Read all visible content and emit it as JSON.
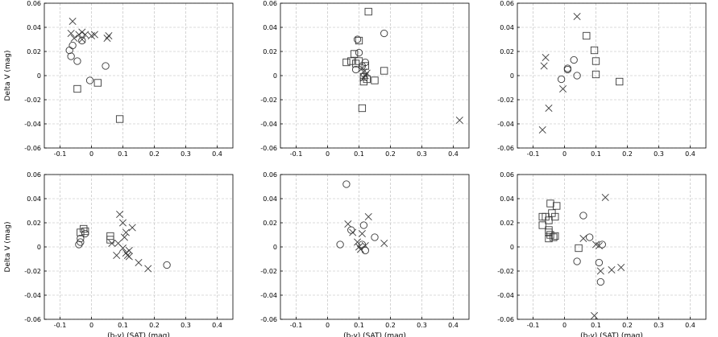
{
  "chart_data": [
    {
      "type": "scatter",
      "ylabel": "Delta  V (mag)",
      "xlabel": "",
      "xlim": [
        -0.15,
        0.45
      ],
      "ylim": [
        -0.06,
        0.06
      ],
      "xticks": [
        "-0.1",
        "0",
        "0.1",
        "0.2",
        "0.3",
        "0.4"
      ],
      "yticks": [
        "0.06",
        "0.04",
        "0.02",
        "0",
        "-0.02",
        "-0.04",
        "-0.06"
      ],
      "grid": true,
      "series": [
        {
          "marker": "circle",
          "points": [
            [
              -0.07,
              0.021
            ],
            [
              -0.065,
              0.016
            ],
            [
              -0.06,
              0.025
            ],
            [
              -0.045,
              0.012
            ],
            [
              -0.03,
              0.029
            ],
            [
              0.045,
              0.008
            ],
            [
              -0.005,
              -0.004
            ]
          ]
        },
        {
          "marker": "cross",
          "points": [
            [
              -0.06,
              0.045
            ],
            [
              -0.065,
              0.035
            ],
            [
              -0.055,
              0.031
            ],
            [
              -0.04,
              0.034
            ],
            [
              -0.03,
              0.036
            ],
            [
              -0.02,
              0.034
            ],
            [
              0.0,
              0.033
            ],
            [
              0.01,
              0.034
            ],
            [
              0.05,
              0.031
            ],
            [
              0.055,
              0.033
            ],
            [
              -0.03,
              0.03
            ]
          ]
        },
        {
          "marker": "square",
          "points": [
            [
              -0.045,
              -0.011
            ],
            [
              0.02,
              -0.006
            ],
            [
              0.09,
              -0.036
            ]
          ]
        }
      ]
    },
    {
      "type": "scatter",
      "ylabel": "",
      "xlabel": "",
      "xlim": [
        -0.15,
        0.45
      ],
      "ylim": [
        -0.06,
        0.06
      ],
      "xticks": [
        "-0.1",
        "0",
        "0.1",
        "0.2",
        "0.3",
        "0.4"
      ],
      "yticks": [
        "0.06",
        "0.04",
        "0.02",
        "0",
        "-0.02",
        "-0.04",
        "-0.06"
      ],
      "grid": true,
      "series": [
        {
          "marker": "circle",
          "points": [
            [
              0.1,
              0.019
            ],
            [
              0.095,
              0.03
            ],
            [
              0.12,
              0.011
            ],
            [
              0.18,
              0.035
            ],
            [
              0.11,
              0.008
            ],
            [
              0.09,
              0.005
            ]
          ]
        },
        {
          "marker": "cross",
          "points": [
            [
              0.11,
              0.006
            ],
            [
              0.115,
              0.003
            ],
            [
              0.12,
              0.0
            ],
            [
              0.125,
              0.002
            ],
            [
              0.115,
              -0.002
            ],
            [
              0.42,
              -0.037
            ]
          ]
        },
        {
          "marker": "square",
          "points": [
            [
              0.13,
              0.053
            ],
            [
              0.1,
              0.029
            ],
            [
              0.06,
              0.011
            ],
            [
              0.075,
              0.012
            ],
            [
              0.085,
              0.018
            ],
            [
              0.09,
              0.01
            ],
            [
              0.1,
              0.012
            ],
            [
              0.12,
              0.008
            ],
            [
              0.115,
              -0.001
            ],
            [
              0.115,
              -0.005
            ],
            [
              0.15,
              -0.004
            ],
            [
              0.11,
              -0.027
            ],
            [
              0.18,
              0.004
            ],
            [
              0.125,
              -0.003
            ]
          ]
        }
      ]
    },
    {
      "type": "scatter",
      "ylabel": "",
      "xlabel": "",
      "xlim": [
        -0.15,
        0.45
      ],
      "ylim": [
        -0.06,
        0.06
      ],
      "xticks": [
        "-0.1",
        "0",
        "0.1",
        "0.2",
        "0.3",
        "0.4"
      ],
      "yticks": [
        "0.06",
        "0.04",
        "0.02",
        "0",
        "-0.02",
        "-0.04",
        "-0.06"
      ],
      "grid": true,
      "series": [
        {
          "marker": "circle",
          "points": [
            [
              0.03,
              0.013
            ],
            [
              0.01,
              0.005
            ],
            [
              0.01,
              0.006
            ],
            [
              -0.01,
              -0.003
            ],
            [
              0.04,
              0.0
            ]
          ]
        },
        {
          "marker": "cross",
          "points": [
            [
              -0.06,
              0.015
            ],
            [
              -0.065,
              0.008
            ],
            [
              -0.05,
              -0.027
            ],
            [
              -0.07,
              -0.045
            ],
            [
              0.04,
              0.049
            ],
            [
              -0.005,
              -0.011
            ]
          ]
        },
        {
          "marker": "square",
          "points": [
            [
              0.07,
              0.033
            ],
            [
              0.095,
              0.021
            ],
            [
              0.1,
              0.012
            ],
            [
              0.1,
              0.001
            ],
            [
              0.175,
              -0.005
            ]
          ]
        }
      ]
    },
    {
      "type": "scatter",
      "ylabel": "Delta  V (mag)",
      "xlabel": "(b-y) (SAT) (mag)",
      "xlim": [
        -0.15,
        0.45
      ],
      "ylim": [
        -0.06,
        0.06
      ],
      "xticks": [
        "-0.1",
        "0",
        "0.1",
        "0.2",
        "0.3",
        "0.4"
      ],
      "yticks": [
        "0.06",
        "0.04",
        "0.02",
        "0",
        "-0.02",
        "-0.04",
        "-0.06"
      ],
      "grid": true,
      "series": [
        {
          "marker": "circle",
          "points": [
            [
              -0.04,
              0.002
            ],
            [
              -0.035,
              0.004
            ],
            [
              -0.035,
              0.007
            ],
            [
              -0.02,
              0.011
            ],
            [
              0.24,
              -0.015
            ]
          ]
        },
        {
          "marker": "cross",
          "points": [
            [
              0.09,
              0.027
            ],
            [
              0.1,
              0.02
            ],
            [
              0.11,
              0.012
            ],
            [
              0.13,
              0.016
            ],
            [
              0.065,
              0.003
            ],
            [
              0.085,
              0.003
            ],
            [
              0.1,
              -0.001
            ],
            [
              0.11,
              -0.005
            ],
            [
              0.115,
              -0.007
            ],
            [
              0.12,
              -0.003
            ],
            [
              0.08,
              -0.007
            ],
            [
              0.15,
              -0.013
            ],
            [
              0.18,
              -0.018
            ],
            [
              0.105,
              0.008
            ],
            [
              0.12,
              -0.008
            ]
          ]
        },
        {
          "marker": "square",
          "points": [
            [
              -0.035,
              0.012
            ],
            [
              -0.025,
              0.015
            ],
            [
              -0.02,
              0.013
            ],
            [
              0.06,
              0.009
            ],
            [
              0.06,
              0.006
            ]
          ]
        }
      ]
    },
    {
      "type": "scatter",
      "ylabel": "",
      "xlabel": "(b-y) (SAT) (mag)",
      "xlim": [
        -0.15,
        0.45
      ],
      "ylim": [
        -0.06,
        0.06
      ],
      "xticks": [
        "-0.1",
        "0",
        "0.1",
        "0.2",
        "0.3",
        "0.4"
      ],
      "yticks": [
        "0.06",
        "0.04",
        "0.02",
        "0",
        "-0.02",
        "-0.04",
        "-0.06"
      ],
      "grid": true,
      "series": [
        {
          "marker": "circle",
          "points": [
            [
              0.06,
              0.052
            ],
            [
              0.04,
              0.002
            ],
            [
              0.075,
              0.014
            ],
            [
              0.115,
              0.018
            ],
            [
              0.15,
              0.008
            ],
            [
              0.12,
              -0.003
            ],
            [
              0.11,
              0.002
            ]
          ]
        },
        {
          "marker": "cross",
          "points": [
            [
              0.065,
              0.019
            ],
            [
              0.08,
              0.012
            ],
            [
              0.11,
              0.011
            ],
            [
              0.13,
              0.025
            ],
            [
              0.18,
              0.003
            ],
            [
              0.095,
              0.004
            ],
            [
              0.1,
              0.0
            ],
            [
              0.105,
              -0.002
            ],
            [
              0.12,
              0.001
            ]
          ]
        },
        {
          "marker": "square",
          "points": []
        }
      ]
    },
    {
      "type": "scatter",
      "ylabel": "",
      "xlabel": "(b-y) (SAT) (mag)",
      "xlim": [
        -0.15,
        0.45
      ],
      "ylim": [
        -0.06,
        0.06
      ],
      "xticks": [
        "-0.1",
        "0",
        "0.1",
        "0.2",
        "0.3",
        "0.4"
      ],
      "yticks": [
        "0.06",
        "0.04",
        "0.02",
        "0",
        "-0.02",
        "-0.04",
        "-0.06"
      ],
      "grid": true,
      "series": [
        {
          "marker": "circle",
          "points": [
            [
              0.06,
              0.026
            ],
            [
              0.08,
              0.008
            ],
            [
              0.04,
              -0.012
            ],
            [
              0.11,
              -0.013
            ],
            [
              0.12,
              0.002
            ],
            [
              0.115,
              -0.029
            ]
          ]
        },
        {
          "marker": "cross",
          "points": [
            [
              0.13,
              0.041
            ],
            [
              0.06,
              0.007
            ],
            [
              0.1,
              0.002
            ],
            [
              0.11,
              0.001
            ],
            [
              0.115,
              -0.02
            ],
            [
              0.15,
              -0.019
            ],
            [
              0.18,
              -0.017
            ],
            [
              0.095,
              -0.057
            ]
          ]
        },
        {
          "marker": "square",
          "points": [
            [
              -0.07,
              0.025
            ],
            [
              -0.06,
              0.025
            ],
            [
              -0.045,
              0.036
            ],
            [
              -0.025,
              0.034
            ],
            [
              -0.04,
              0.028
            ],
            [
              -0.05,
              0.022
            ],
            [
              -0.07,
              0.018
            ],
            [
              -0.05,
              0.014
            ],
            [
              -0.05,
              0.012
            ],
            [
              -0.03,
              0.025
            ],
            [
              -0.045,
              0.01
            ],
            [
              -0.03,
              0.009
            ],
            [
              -0.05,
              0.007
            ],
            [
              -0.035,
              0.008
            ],
            [
              0.045,
              -0.001
            ]
          ]
        }
      ]
    }
  ]
}
